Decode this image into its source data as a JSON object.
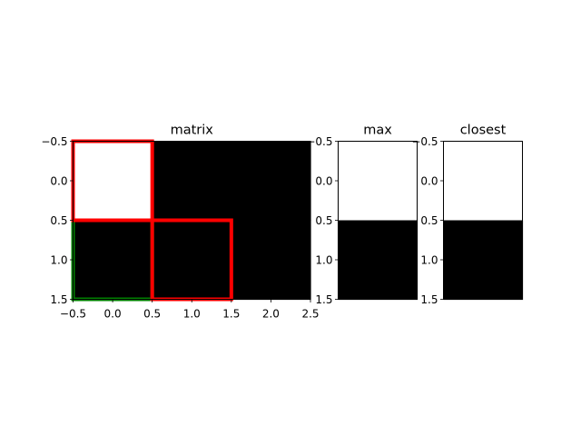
{
  "chart_data": [
    {
      "type": "heatmap",
      "title": "matrix",
      "xlabel": "",
      "ylabel": "",
      "xlim": [
        -0.5,
        2.5
      ],
      "ylim": [
        1.5,
        -0.5
      ],
      "xticks": [
        "−0.5",
        "0.0",
        "0.5",
        "1.0",
        "1.5",
        "2.0",
        "2.5"
      ],
      "yticks": [
        "−0.5",
        "0.0",
        "0.5",
        "1.0",
        "1.5"
      ],
      "colormap": [
        "#000000",
        "#ffffff"
      ],
      "values": [
        [
          1,
          0,
          0
        ],
        [
          0,
          0,
          0
        ]
      ],
      "rectangles": [
        {
          "x0": -0.5,
          "y0": 0.5,
          "x1": 0.5,
          "y1": 1.5,
          "color": "#008000"
        },
        {
          "x0": -0.5,
          "y0": -0.5,
          "x1": 0.5,
          "y1": 0.5,
          "color": "#ff0000"
        },
        {
          "x0": 0.5,
          "y0": 0.5,
          "x1": 1.5,
          "y1": 1.5,
          "color": "#ff0000"
        }
      ],
      "grid": false
    },
    {
      "type": "heatmap",
      "title": "max",
      "xlabel": "",
      "ylabel": "",
      "ylim": [
        1.5,
        -0.5
      ],
      "yticks": [
        "−0.5",
        "0.0",
        "0.5",
        "1.0",
        "1.5"
      ],
      "colormap": [
        "#000000",
        "#ffffff"
      ],
      "values": [
        [
          1
        ],
        [
          0
        ]
      ],
      "grid": false
    },
    {
      "type": "heatmap",
      "title": "closest",
      "xlabel": "",
      "ylabel": "",
      "ylim": [
        1.5,
        -0.5
      ],
      "yticks": [
        "−0.5",
        "0.0",
        "0.5",
        "1.0",
        "1.5"
      ],
      "colormap": [
        "#000000",
        "#ffffff"
      ],
      "values": [
        [
          1
        ],
        [
          0
        ]
      ],
      "grid": false
    }
  ]
}
